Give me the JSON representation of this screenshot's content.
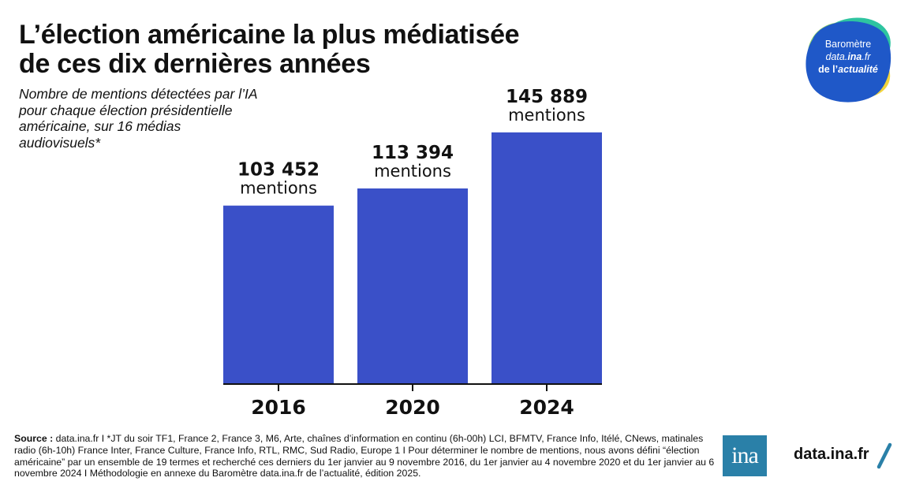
{
  "header": {
    "title_line1": "L’élection américaine la plus médiatisée",
    "title_line2": "de ces dix dernières années",
    "subtitle_line1": "Nombre de mentions détectées par l’IA",
    "subtitle_line2": "pour chaque élection présidentielle",
    "subtitle_line3": "américaine, sur 16 médias",
    "subtitle_line4": "audiovisuels*"
  },
  "chart_data": {
    "type": "bar",
    "categories": [
      "2016",
      "2020",
      "2024"
    ],
    "values": [
      103452,
      113394,
      145889
    ],
    "data_labels": [
      "103 452",
      "113 394",
      "145 889"
    ],
    "data_label_unit": "mentions",
    "ylim": [
      0,
      160000
    ],
    "grid": false,
    "bar_color": "#3a50c8"
  },
  "badge": {
    "line1": "Baromètre",
    "line2_pre": "data.",
    "line2_em": "ina",
    "line2_post": ".fr",
    "line3_pre": "de l’",
    "line3_em": "actualité",
    "colors": [
      "#2ec4a0",
      "#f2d43c",
      "#8fd46a",
      "#1f58c8"
    ]
  },
  "footer": {
    "source_label": "Source :",
    "source_text": " data.ina.fr I *JT du soir TF1, France 2, France 3, M6, Arte, chaînes d’information en continu (6h-00h) LCI, BFMTV, France Info, Itélé, CNews, matinales radio (6h-10h) France Inter, France Culture, France Info, RTL, RMC, Sud Radio, Europe 1 I Pour déterminer le nombre de mentions, nous avons défini “élection américaine” par un ensemble de 19 termes et recherché ces derniers du 1er janvier au 9 novembre 2016, du 1er janvier au 4 novembre 2020 et du 1er janvier au 6 novembre 2024 I Méthodologie en annexe du Baromètre data.ina.fr de l’actualité, édition 2025.",
    "logo_text": "ina",
    "site": "data.ina.fr",
    "accent": "#2a80a8"
  }
}
